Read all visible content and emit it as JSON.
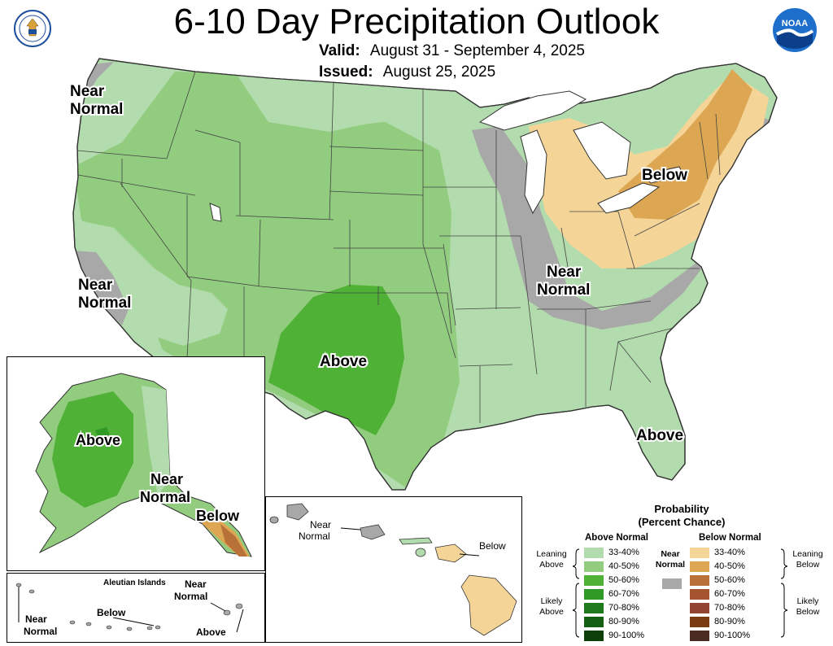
{
  "header": {
    "title": "6-10 Day Precipitation Outlook",
    "valid_label": "Valid:",
    "valid_value": "August 31 - September 4, 2025",
    "issued_label": "Issued:",
    "issued_value": "August 25, 2025",
    "left_logo": "department-of-commerce-seal",
    "right_logo": "noaa-logo",
    "right_logo_text": "NOAA"
  },
  "map_labels": {
    "pacific_nw": [
      "Near",
      "Normal"
    ],
    "california": [
      "Near",
      "Normal"
    ],
    "southern_plains": "Above",
    "florida": "Above",
    "northeast": "Below",
    "ohio_valley": [
      "Near",
      "Normal"
    ]
  },
  "alaska_labels": {
    "interior": "Above",
    "southeast_near": [
      "Near",
      "Normal"
    ],
    "panhandle": "Below"
  },
  "aleutian_labels": {
    "title": "Aleutian Islands",
    "west": [
      "Near",
      "Normal"
    ],
    "middle": "Below",
    "east_near": [
      "Near",
      "Normal"
    ],
    "east_above": "Above"
  },
  "hawaii_labels": {
    "near": [
      "Near",
      "Normal"
    ],
    "below": "Below"
  },
  "legend": {
    "title_line1": "Probability",
    "title_line2": "(Percent Chance)",
    "above_header": "Above Normal",
    "below_header": "Below Normal",
    "near_header": [
      "Near",
      "Normal"
    ],
    "near_color": "#a8a8a8",
    "leaning_above": [
      "Leaning",
      "Above"
    ],
    "likely_above": [
      "Likely",
      "Above"
    ],
    "leaning_below": [
      "Leaning",
      "Below"
    ],
    "likely_below": [
      "Likely",
      "Below"
    ],
    "ranges": [
      "33-40%",
      "40-50%",
      "50-60%",
      "60-70%",
      "70-80%",
      "80-90%",
      "90-100%"
    ],
    "above_colors": [
      "#b3dcae",
      "#92cc7f",
      "#4fb136",
      "#2f9a26",
      "#1f7a1c",
      "#155f13",
      "#0d3f0b"
    ],
    "below_colors": [
      "#f5d597",
      "#dca652",
      "#b9713a",
      "#a4552f",
      "#924433",
      "#7a3a12",
      "#4a2b22"
    ]
  },
  "colors": {
    "near_normal": "#a8a8a8",
    "lean_above": "#b3dcae",
    "above_40": "#92cc7f",
    "above_50": "#4fb136",
    "above_60": "#2f9a26",
    "lean_below": "#f5d597",
    "below_40": "#dca652",
    "below_50": "#b9713a",
    "water": "#ffffff"
  }
}
